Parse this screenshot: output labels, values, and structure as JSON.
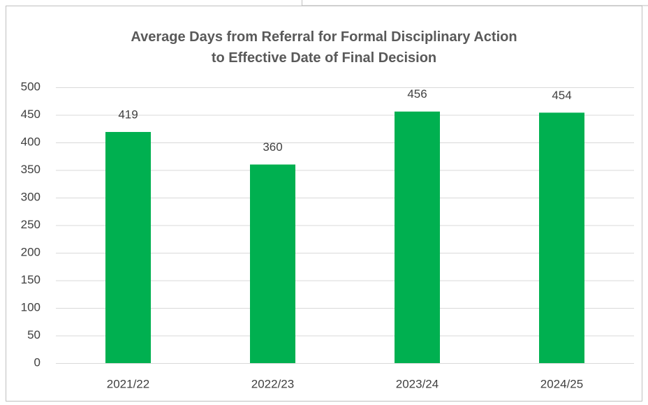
{
  "chart_data": {
    "type": "bar",
    "title": "Average Days from Referral for Formal Disciplinary Action\nto Effective Date of Final Decision",
    "categories": [
      "2021/22",
      "2022/23",
      "2023/24",
      "2024/25"
    ],
    "values": [
      419,
      360,
      456,
      454
    ],
    "color": "#00b050",
    "ylim": [
      0,
      500
    ],
    "yticks": [
      0,
      50,
      100,
      150,
      200,
      250,
      300,
      350,
      400,
      450,
      500
    ],
    "grid": true
  }
}
